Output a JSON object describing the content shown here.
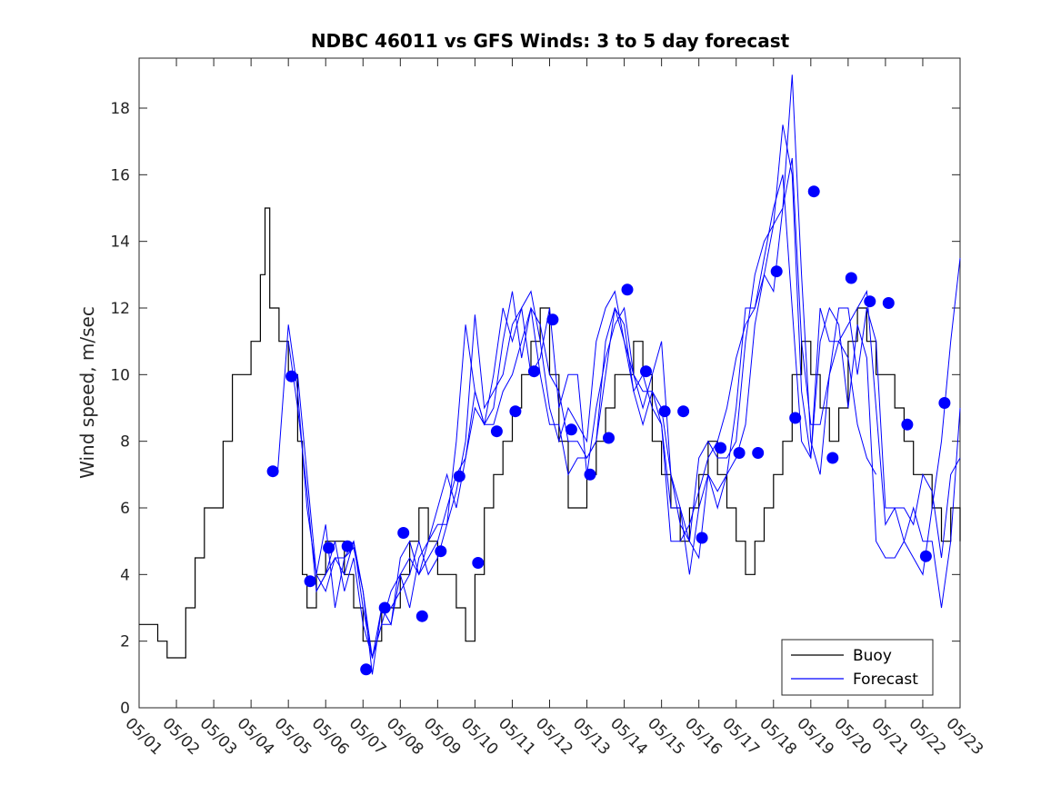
{
  "chart_data": {
    "type": "line",
    "title": "NDBC 46011 vs GFS Winds: 3 to 5 day forecast",
    "xlabel": "",
    "ylabel": "Wind speed, m/sec",
    "xlim": [
      "05/01",
      "05/23"
    ],
    "ylim": [
      0,
      19.5
    ],
    "x_tick_labels": [
      "05/01",
      "05/02",
      "05/03",
      "05/04",
      "05/05",
      "05/06",
      "05/07",
      "05/08",
      "05/09",
      "05/10",
      "05/11",
      "05/12",
      "05/13",
      "05/14",
      "05/15",
      "05/16",
      "05/17",
      "05/18",
      "05/19",
      "05/20",
      "05/21",
      "05/22",
      "05/23"
    ],
    "y_ticks": [
      0,
      2,
      4,
      6,
      8,
      10,
      12,
      14,
      16,
      18
    ],
    "grid": false,
    "legend": {
      "placement": "bottom-right",
      "entries": [
        "Buoy",
        "Forecast"
      ]
    },
    "colors": {
      "buoy": "#000000",
      "forecast": "#0000ff"
    },
    "series": [
      {
        "name": "Buoy",
        "x": [
          "05/01 00:00",
          "05/01 06:00",
          "05/01 12:00",
          "05/01 18:00",
          "05/02 00:00",
          "05/02 06:00",
          "05/02 12:00",
          "05/02 18:00",
          "05/03 00:00",
          "05/03 06:00",
          "05/03 12:00",
          "05/03 18:00",
          "05/04 00:00",
          "05/04 06:00",
          "05/04 09:00",
          "05/04 12:00",
          "05/04 18:00",
          "05/05 00:00",
          "05/05 06:00",
          "05/05 09:00",
          "05/05 12:00",
          "05/05 18:00",
          "05/06 00:00",
          "05/06 06:00",
          "05/06 12:00",
          "05/06 18:00",
          "05/07 00:00",
          "05/07 06:00",
          "05/07 12:00",
          "05/07 18:00",
          "05/08 00:00",
          "05/08 06:00",
          "05/08 12:00",
          "05/08 18:00",
          "05/09 00:00",
          "05/09 06:00",
          "05/09 12:00",
          "05/09 18:00",
          "05/10 00:00",
          "05/10 06:00",
          "05/10 12:00",
          "05/10 18:00",
          "05/11 00:00",
          "05/11 06:00",
          "05/11 12:00",
          "05/11 18:00",
          "05/12 00:00",
          "05/12 06:00",
          "05/12 12:00",
          "05/12 18:00",
          "05/13 00:00",
          "05/13 06:00",
          "05/13 12:00",
          "05/13 18:00",
          "05/14 00:00",
          "05/14 06:00",
          "05/14 12:00",
          "05/14 18:00",
          "05/15 00:00",
          "05/15 06:00",
          "05/15 12:00",
          "05/15 18:00",
          "05/16 00:00",
          "05/16 06:00",
          "05/16 12:00",
          "05/16 18:00",
          "05/17 00:00",
          "05/17 06:00",
          "05/17 12:00",
          "05/17 18:00",
          "05/18 00:00",
          "05/18 06:00",
          "05/18 12:00",
          "05/18 18:00",
          "05/19 00:00",
          "05/19 06:00",
          "05/19 12:00",
          "05/19 18:00",
          "05/20 00:00",
          "05/20 06:00",
          "05/20 12:00",
          "05/20 18:00",
          "05/21 00:00",
          "05/21 06:00",
          "05/21 12:00",
          "05/21 18:00",
          "05/22 00:00",
          "05/22 06:00",
          "05/22 12:00",
          "05/22 18:00",
          "05/23 00:00"
        ],
        "values": [
          2.5,
          2.5,
          2,
          1.5,
          1.5,
          3,
          4.5,
          6,
          6,
          8,
          10,
          10,
          11,
          13,
          15,
          12,
          11,
          10,
          8,
          4,
          3,
          4,
          5,
          5,
          4,
          3,
          2,
          2,
          3,
          3,
          4,
          5,
          6,
          5,
          4,
          4,
          3,
          2,
          4,
          6,
          7,
          8,
          9,
          10,
          11,
          12,
          10,
          8,
          6,
          6,
          7,
          8,
          9,
          10,
          10,
          11,
          10,
          8,
          7,
          6,
          5,
          6,
          7,
          8,
          7,
          6,
          5,
          4,
          5,
          6,
          7,
          8,
          10,
          11,
          10,
          9,
          8,
          9,
          11,
          12,
          11,
          10,
          10,
          9,
          8,
          7,
          7,
          6,
          5,
          6,
          5
        ]
      },
      {
        "name": "Forecast",
        "runs": [
          {
            "x": [
              "05/04 17:00",
              "05/05 00:00",
              "05/05 06:00",
              "05/05 12:00",
              "05/05 18:00",
              "05/06 00:00",
              "05/06 06:00",
              "05/06 12:00",
              "05/06 18:00",
              "05/07 00:00",
              "05/07 06:00",
              "05/07 12:00",
              "05/07 18:00",
              "05/08 00:00",
              "05/08 06:00",
              "05/08 12:00",
              "05/08 18:00",
              "05/09 00:00",
              "05/09 06:00",
              "05/09 12:00",
              "05/09 18:00",
              "05/10 00:00",
              "05/10 06:00",
              "05/10 12:00",
              "05/10 18:00",
              "05/11 00:00",
              "05/11 06:00",
              "05/11 12:00",
              "05/11 18:00",
              "05/12 00:00",
              "05/12 06:00",
              "05/12 12:00",
              "05/12 18:00",
              "05/13 00:00",
              "05/13 06:00",
              "05/13 12:00",
              "05/13 18:00",
              "05/14 00:00",
              "05/14 06:00",
              "05/14 12:00",
              "05/14 18:00",
              "05/15 00:00",
              "05/15 06:00",
              "05/15 12:00",
              "05/15 18:00",
              "05/16 00:00",
              "05/16 06:00",
              "05/16 12:00",
              "05/16 18:00",
              "05/17 00:00",
              "05/17 06:00",
              "05/17 12:00",
              "05/17 18:00",
              "05/18 00:00",
              "05/18 06:00",
              "05/18 12:00",
              "05/18 18:00",
              "05/19 00:00",
              "05/19 06:00",
              "05/19 12:00",
              "05/19 18:00",
              "05/20 00:00",
              "05/20 06:00",
              "05/20 12:00",
              "05/20 18:00",
              "05/21 00:00",
              "05/21 06:00",
              "05/21 12:00",
              "05/21 18:00",
              "05/22 00:00",
              "05/22 06:00",
              "05/22 12:00",
              "05/22 18:00",
              "05/23 00:00"
            ],
            "values": [
              7,
              11.5,
              9.5,
              6,
              4,
              3.5,
              4.5,
              4.5,
              4.8,
              3.5,
              1.5,
              3,
              2.5,
              4.5,
              5,
              4,
              4.5,
              5,
              6,
              7,
              7.5,
              9,
              8.5,
              8.5,
              9.5,
              10,
              11,
              12,
              10,
              8.5,
              8.5,
              7,
              7.5,
              7.5,
              8,
              10,
              12,
              11,
              10,
              9.5,
              9.5,
              9,
              7,
              6,
              5,
              7.5,
              8,
              7.5,
              7.5,
              8,
              11,
              13,
              14,
              14.5,
              15,
              19,
              13,
              8,
              7,
              10,
              12,
              12,
              10,
              12,
              11,
              6,
              6,
              5,
              6,
              5,
              5,
              3,
              5,
              9
            ]
          },
          {
            "x": [
              "05/05 00:00",
              "05/05 06:00",
              "05/05 12:00",
              "05/05 18:00",
              "05/06 00:00",
              "05/06 06:00",
              "05/06 12:00",
              "05/06 18:00",
              "05/07 00:00",
              "05/07 06:00",
              "05/07 12:00",
              "05/07 18:00",
              "05/08 00:00",
              "05/08 06:00",
              "05/08 12:00",
              "05/08 18:00",
              "05/09 00:00",
              "05/09 06:00",
              "05/09 12:00",
              "05/09 18:00",
              "05/10 00:00",
              "05/10 06:00",
              "05/10 12:00",
              "05/10 18:00",
              "05/11 00:00",
              "05/11 06:00",
              "05/11 12:00",
              "05/11 18:00",
              "05/12 00:00",
              "05/12 06:00",
              "05/12 12:00",
              "05/12 18:00",
              "05/13 00:00",
              "05/13 06:00",
              "05/13 12:00",
              "05/13 18:00",
              "05/14 00:00",
              "05/14 06:00",
              "05/14 12:00",
              "05/14 18:00",
              "05/15 00:00",
              "05/15 06:00",
              "05/15 12:00",
              "05/15 18:00",
              "05/16 00:00",
              "05/16 06:00",
              "05/16 12:00",
              "05/16 18:00",
              "05/17 00:00",
              "05/17 06:00",
              "05/17 12:00",
              "05/17 18:00",
              "05/18 00:00",
              "05/18 06:00",
              "05/18 12:00",
              "05/18 18:00",
              "05/19 00:00",
              "05/19 06:00",
              "05/19 12:00",
              "05/19 18:00",
              "05/20 00:00",
              "05/20 06:00",
              "05/20 12:00",
              "05/20 18:00",
              "05/21 00:00",
              "05/21 06:00",
              "05/21 12:00",
              "05/21 18:00",
              "05/22 00:00",
              "05/22 06:00",
              "05/22 12:00",
              "05/22 18:00",
              "05/23 00:00"
            ],
            "values": [
              11,
              9,
              6.5,
              3.5,
              4,
              4.5,
              4,
              5,
              3,
              1.5,
              2.5,
              2.5,
              4,
              4.5,
              4,
              5,
              5.5,
              5.5,
              8,
              11.5,
              9.5,
              8.5,
              9,
              11,
              12.5,
              10.5,
              12,
              11.5,
              10,
              9.5,
              8,
              8,
              7.5,
              8,
              11,
              12,
              11.5,
              9.5,
              8.5,
              9.5,
              8.5,
              6,
              6,
              4,
              6,
              7,
              6.5,
              7,
              9,
              12,
              12,
              13,
              14.5,
              17.5,
              16,
              9.5,
              7.5,
              11,
              12,
              11.5,
              9,
              11.5,
              10.5,
              5,
              4.5,
              4.5,
              5,
              4.5,
              4,
              6,
              8,
              11,
              13.5
            ]
          },
          {
            "x": [
              "05/05 06:00",
              "05/05 12:00",
              "05/05 18:00",
              "05/06 00:00",
              "05/06 06:00",
              "05/06 12:00",
              "05/06 18:00",
              "05/07 00:00",
              "05/07 06:00",
              "05/07 12:00",
              "05/07 18:00",
              "05/08 00:00",
              "05/08 06:00",
              "05/08 12:00",
              "05/08 18:00",
              "05/09 00:00",
              "05/09 06:00",
              "05/09 12:00",
              "05/09 18:00",
              "05/10 00:00",
              "05/10 06:00",
              "05/10 12:00",
              "05/10 18:00",
              "05/11 00:00",
              "05/11 06:00",
              "05/11 12:00",
              "05/11 18:00",
              "05/12 00:00",
              "05/12 06:00",
              "05/12 12:00",
              "05/12 18:00",
              "05/13 00:00",
              "05/13 06:00",
              "05/13 12:00",
              "05/13 18:00",
              "05/14 00:00",
              "05/14 06:00",
              "05/14 12:00",
              "05/14 18:00",
              "05/15 00:00",
              "05/15 06:00",
              "05/15 12:00",
              "05/15 18:00",
              "05/16 00:00",
              "05/16 06:00",
              "05/16 12:00",
              "05/16 18:00",
              "05/17 00:00",
              "05/17 06:00",
              "05/17 12:00",
              "05/17 18:00",
              "05/18 00:00",
              "05/18 06:00",
              "05/18 12:00",
              "05/18 18:00",
              "05/19 00:00",
              "05/19 06:00",
              "05/19 12:00",
              "05/19 18:00",
              "05/20 00:00",
              "05/20 06:00",
              "05/20 12:00",
              "05/20 18:00",
              "05/21 00:00",
              "05/21 06:00",
              "05/21 12:00",
              "05/21 18:00",
              "05/22 00:00",
              "05/22 06:00",
              "05/22 12:00",
              "05/22 18:00",
              "05/23 00:00"
            ],
            "values": [
              10,
              7,
              4,
              5.5,
              3,
              4.5,
              5,
              3.5,
              1,
              3,
              3,
              3.5,
              4,
              5,
              4,
              4.5,
              5.5,
              6.5,
              8,
              11.8,
              9,
              9.5,
              10,
              11.5,
              12,
              10,
              10.5,
              12,
              9,
              10,
              10,
              7,
              9,
              10.5,
              11.5,
              12,
              10,
              9,
              10,
              11,
              7,
              5.5,
              5,
              4.5,
              7,
              6,
              7,
              7.5,
              8.5,
              11.5,
              13,
              12.5,
              15,
              16.5,
              11,
              8.5,
              8.5,
              10,
              11,
              11.5,
              12,
              12.5,
              9,
              5.5,
              6,
              6,
              5.5,
              7,
              6.5,
              4.5,
              7,
              7.5
            ]
          },
          {
            "x": [
              "05/05 18:00",
              "05/06 00:00",
              "05/06 06:00",
              "05/06 12:00",
              "05/06 18:00",
              "05/07 00:00",
              "05/07 06:00",
              "05/07 12:00",
              "05/07 18:00",
              "05/08 00:00",
              "05/08 06:00",
              "05/08 12:00",
              "05/08 18:00",
              "05/09 00:00",
              "05/09 06:00",
              "05/09 12:00",
              "05/09 18:00",
              "05/10 00:00",
              "05/10 06:00",
              "05/10 12:00",
              "05/10 18:00",
              "05/11 00:00",
              "05/11 06:00",
              "05/11 12:00",
              "05/11 18:00",
              "05/12 00:00",
              "05/12 06:00",
              "05/12 12:00",
              "05/12 18:00",
              "05/13 00:00",
              "05/13 06:00",
              "05/13 12:00",
              "05/13 18:00",
              "05/14 00:00",
              "05/14 06:00",
              "05/14 12:00",
              "05/14 18:00",
              "05/15 00:00",
              "05/15 06:00",
              "05/15 12:00",
              "05/15 18:00",
              "05/16 00:00",
              "05/16 06:00",
              "05/16 12:00",
              "05/16 18:00",
              "05/17 00:00",
              "05/17 06:00",
              "05/17 12:00",
              "05/17 18:00",
              "05/18 00:00",
              "05/18 06:00",
              "05/18 12:00",
              "05/18 18:00",
              "05/19 00:00",
              "05/19 06:00",
              "05/19 12:00",
              "05/19 18:00",
              "05/20 00:00",
              "05/20 06:00",
              "05/20 12:00",
              "05/20 18:00"
            ],
            "values": [
              3.5,
              4,
              5,
              3.5,
              4.5,
              2.5,
              1.5,
              2.5,
              3.5,
              4,
              3,
              4.5,
              5,
              6,
              7,
              6,
              7.5,
              9.5,
              8.5,
              10,
              12,
              11,
              12,
              12.5,
              11,
              9,
              8,
              9,
              8.5,
              8,
              11,
              12,
              12.5,
              11,
              9.5,
              10,
              9,
              8.5,
              5,
              5,
              5.5,
              6.5,
              7.5,
              8,
              9,
              10.5,
              11.5,
              12,
              13.5,
              15,
              16,
              12,
              8,
              7.5,
              12,
              11,
              11,
              10.5,
              8.5,
              7.5,
              7
            ]
          }
        ]
      }
    ],
    "markers": {
      "name": "Forecast",
      "x": [
        "05/04 14:00",
        "05/05 02:00",
        "05/05 14:00",
        "05/06 02:00",
        "05/06 14:00",
        "05/07 02:00",
        "05/07 14:00",
        "05/08 02:00",
        "05/08 14:00",
        "05/09 02:00",
        "05/09 14:00",
        "05/10 02:00",
        "05/10 14:00",
        "05/11 02:00",
        "05/11 14:00",
        "05/12 02:00",
        "05/12 14:00",
        "05/13 02:00",
        "05/13 14:00",
        "05/14 02:00",
        "05/14 14:00",
        "05/15 02:00",
        "05/15 14:00",
        "05/16 02:00",
        "05/16 14:00",
        "05/17 02:00",
        "05/17 14:00",
        "05/18 02:00",
        "05/18 14:00",
        "05/19 02:00",
        "05/19 14:00",
        "05/20 02:00",
        "05/20 14:00",
        "05/21 02:00",
        "05/21 14:00",
        "05/22 02:00",
        "05/22 14:00"
      ],
      "values": [
        7.1,
        9.95,
        3.8,
        4.8,
        4.85,
        1.15,
        3.0,
        5.25,
        2.75,
        4.7,
        6.95,
        4.35,
        8.3,
        8.9,
        10.1,
        11.65,
        8.35,
        7.0,
        8.1,
        12.55,
        10.1,
        8.9,
        8.9,
        5.1,
        7.8,
        7.65,
        7.65,
        13.1,
        8.7,
        15.5,
        7.5,
        12.9,
        12.2,
        12.15,
        8.5,
        4.55,
        9.15
      ]
    }
  }
}
